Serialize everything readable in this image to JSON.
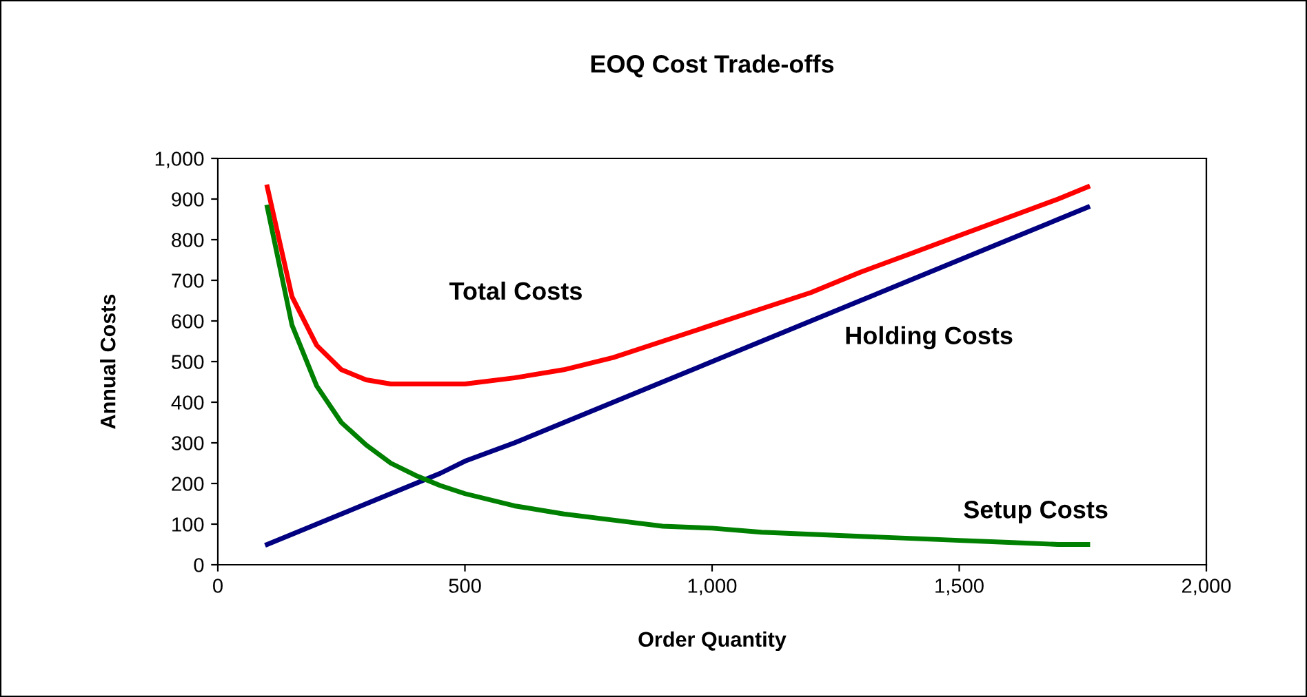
{
  "chart_data": {
    "type": "line",
    "title": "EOQ Cost Trade-offs",
    "xlabel": "Order Quantity",
    "ylabel": "Annual Costs",
    "x": [
      100,
      150,
      200,
      250,
      300,
      350,
      400,
      450,
      500,
      600,
      700,
      800,
      900,
      1000,
      1100,
      1200,
      1300,
      1400,
      1500,
      1600,
      1700,
      1760
    ],
    "series": [
      {
        "name": "Total Costs",
        "color": "#ff0000",
        "values": [
          930,
          660,
          540,
          480,
          455,
          445,
          445,
          445,
          445,
          460,
          480,
          510,
          550,
          590,
          630,
          670,
          720,
          765,
          810,
          855,
          900,
          930
        ]
      },
      {
        "name": "Holding Costs",
        "color": "#000080",
        "values": [
          50,
          75,
          100,
          125,
          150,
          175,
          200,
          225,
          255,
          300,
          350,
          400,
          450,
          500,
          550,
          600,
          650,
          700,
          750,
          800,
          850,
          880
        ]
      },
      {
        "name": "Setup Costs",
        "color": "#008000",
        "values": [
          880,
          590,
          440,
          350,
          295,
          250,
          220,
          195,
          175,
          145,
          125,
          110,
          95,
          90,
          80,
          75,
          70,
          65,
          60,
          55,
          50,
          50
        ]
      }
    ],
    "xlim": [
      0,
      2000
    ],
    "xticks": [
      0,
      {
        "value": 500,
        "label": "500"
      },
      {
        "value": 1000,
        "label": "1,000"
      },
      {
        "value": 1500,
        "label": "1,500"
      },
      {
        "value": 2000,
        "label": "2,000"
      }
    ],
    "ylim": [
      0,
      1000
    ],
    "yticks": [
      0,
      100,
      200,
      300,
      400,
      500,
      600,
      700,
      800,
      900,
      {
        "value": 1000,
        "label": "1,000"
      }
    ],
    "grid": false,
    "legend": false,
    "marker": "none",
    "line_style": "solid"
  }
}
